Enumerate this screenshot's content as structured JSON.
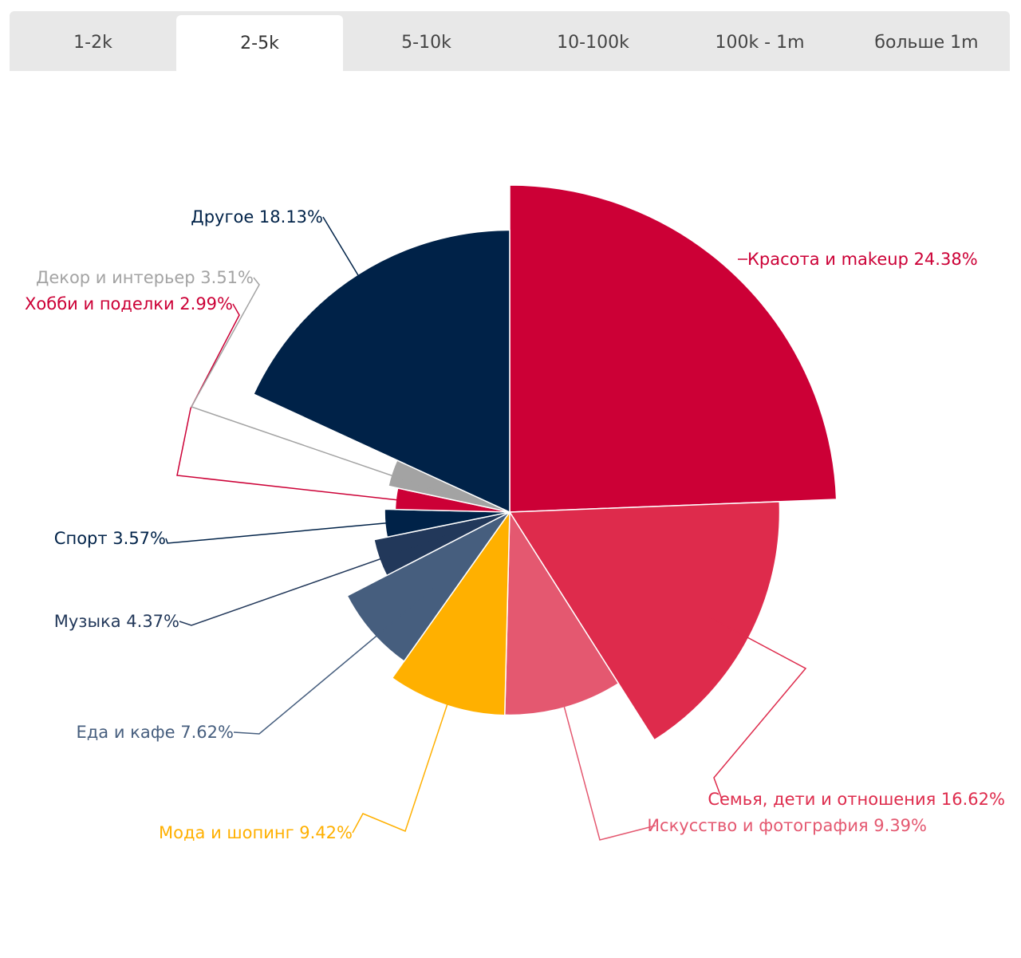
{
  "tabs": [
    {
      "label": "1-2k",
      "active": false
    },
    {
      "label": "2-5k",
      "active": true
    },
    {
      "label": "5-10k",
      "active": false
    },
    {
      "label": "10-100k",
      "active": false
    },
    {
      "label": "100k - 1m",
      "active": false
    },
    {
      "label": "больше 1m",
      "active": false
    }
  ],
  "chart_data": {
    "type": "pie",
    "variant": "variable-radius",
    "title": "",
    "slices": [
      {
        "label": "Красота и makeup 24.38%",
        "value": 24.38,
        "color": "#cc0036"
      },
      {
        "label": "Семья, дети и отношения 16.62%",
        "value": 16.62,
        "color": "#de2b4c"
      },
      {
        "label": "Искусство и фотография 9.39%",
        "value": 9.39,
        "color": "#e45870"
      },
      {
        "label": "Мода и шопинг 9.42%",
        "value": 9.42,
        "color": "#ffb000"
      },
      {
        "label": "Еда и кафе 7.62%",
        "value": 7.62,
        "color": "#465e7e"
      },
      {
        "label": "Музыка 4.37%",
        "value": 4.37,
        "color": "#22385a"
      },
      {
        "label": "Спорт 3.57%",
        "value": 3.57,
        "color": "#002248"
      },
      {
        "label": "Хобби и поделки 2.99%",
        "value": 2.99,
        "color": "#cc0036"
      },
      {
        "label": "Декор и интерьер 3.51%",
        "value": 3.51,
        "color": "#a3a3a3"
      },
      {
        "label": "Другое 18.13%",
        "value": 18.13,
        "color": "#002248"
      }
    ]
  }
}
